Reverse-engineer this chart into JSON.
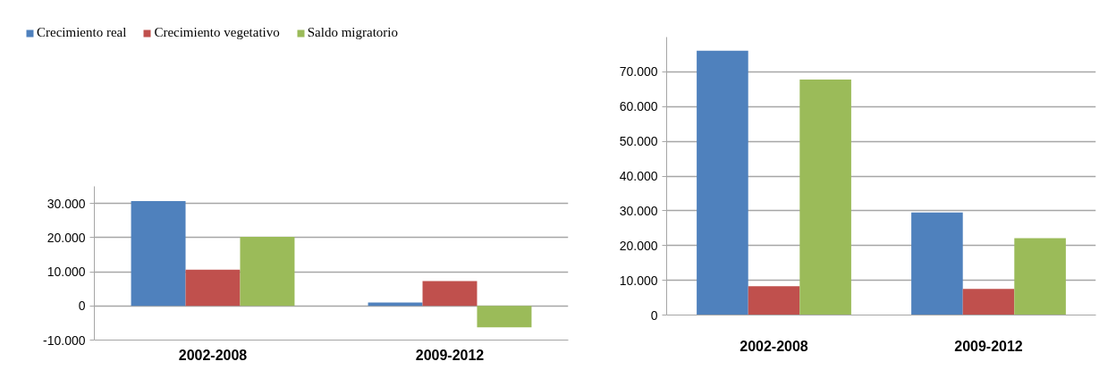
{
  "chart_data": [
    {
      "type": "bar",
      "categories": [
        "2002-2008",
        "2009-2012"
      ],
      "series": [
        {
          "name": "Crecimiento real",
          "color": "#4f81bd",
          "values": [
            30700,
            1000
          ]
        },
        {
          "name": "Crecimiento vegetativo",
          "color": "#c0504d",
          "values": [
            10600,
            7300
          ]
        },
        {
          "name": "Saldo migratorio",
          "color": "#9bbb59",
          "values": [
            20200,
            -6300
          ]
        }
      ],
      "ylim": [
        -10000,
        35000
      ],
      "yticks": [
        {
          "value": -10000,
          "label": "-10.000"
        },
        0,
        {
          "value": 10000,
          "label": "10.000"
        },
        {
          "value": 20000,
          "label": "20.000"
        },
        {
          "value": 30000,
          "label": "30.000"
        }
      ],
      "grid": "y",
      "legend": "top left"
    },
    {
      "type": "bar",
      "categories": [
        "2002-2008",
        "2009-2012"
      ],
      "series": [
        {
          "color": "#4f81bd",
          "values": [
            76100,
            29500
          ]
        },
        {
          "color": "#c0504d",
          "values": [
            8300,
            7500
          ]
        },
        {
          "color": "#9bbb59",
          "values": [
            67800,
            22100
          ]
        }
      ],
      "ylim": [
        0,
        80000
      ],
      "yticks": [
        0,
        {
          "value": 10000,
          "label": "10.000"
        },
        {
          "value": 20000,
          "label": "20.000"
        },
        {
          "value": 30000,
          "label": "30.000"
        },
        {
          "value": 40000,
          "label": "40.000"
        },
        {
          "value": 50000,
          "label": "50.000"
        },
        {
          "value": 60000,
          "label": "60.000"
        },
        {
          "value": 70000,
          "label": "70.000"
        }
      ],
      "grid": "y"
    }
  ]
}
